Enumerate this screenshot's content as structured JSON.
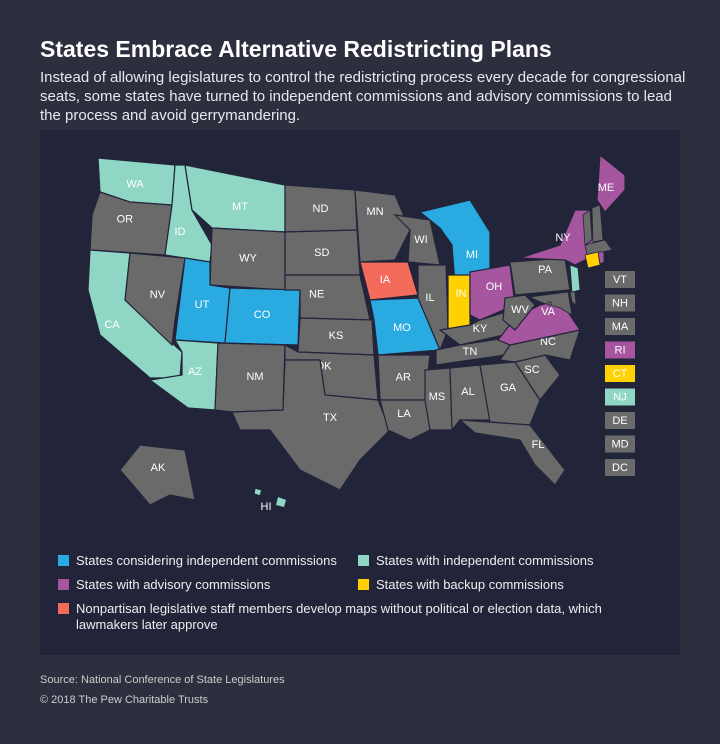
{
  "title": "States Embrace Alternative Redistricting Plans",
  "subtitle": "Instead of allowing legislatures to control the redistricting process every decade for congressional seats, some states have turned to independent commissions and advisory commissions to lead the process and avoid gerrymandering.",
  "states": [
    {
      "label": "WA",
      "color": "#8fd6c4"
    },
    {
      "label": "OR",
      "color": "#6a6a6a"
    },
    {
      "label": "CA",
      "color": "#8fd6c4"
    },
    {
      "label": "NV",
      "color": "#6a6a6a"
    },
    {
      "label": "ID",
      "color": "#8fd6c4"
    },
    {
      "label": "MT",
      "color": "#8fd6c4"
    },
    {
      "label": "WY",
      "color": "#6a6a6a"
    },
    {
      "label": "UT",
      "color": "#29abe2"
    },
    {
      "label": "CO",
      "color": "#29abe2"
    },
    {
      "label": "AZ",
      "color": "#8fd6c4"
    },
    {
      "label": "NM",
      "color": "#6a6a6a"
    },
    {
      "label": "ND",
      "color": "#6a6a6a"
    },
    {
      "label": "SD",
      "color": "#6a6a6a"
    },
    {
      "label": "NE",
      "color": "#6a6a6a"
    },
    {
      "label": "KS",
      "color": "#6a6a6a"
    },
    {
      "label": "OK",
      "color": "#6a6a6a"
    },
    {
      "label": "TX",
      "color": "#6a6a6a"
    },
    {
      "label": "MN",
      "color": "#6a6a6a"
    },
    {
      "label": "IA",
      "color": "#f26b5b"
    },
    {
      "label": "MO",
      "color": "#29abe2"
    },
    {
      "label": "AR",
      "color": "#6a6a6a"
    },
    {
      "label": "LA",
      "color": "#6a6a6a"
    },
    {
      "label": "WI",
      "color": "#6a6a6a"
    },
    {
      "label": "IL",
      "color": "#6a6a6a"
    },
    {
      "label": "MI",
      "color": "#29abe2"
    },
    {
      "label": "IN",
      "color": "#ffd100"
    },
    {
      "label": "OH",
      "color": "#a5569f"
    },
    {
      "label": "KY",
      "color": "#6a6a6a"
    },
    {
      "label": "TN",
      "color": "#6a6a6a"
    },
    {
      "label": "MS",
      "color": "#6a6a6a"
    },
    {
      "label": "AL",
      "color": "#6a6a6a"
    },
    {
      "label": "GA",
      "color": "#6a6a6a"
    },
    {
      "label": "FL",
      "color": "#6a6a6a"
    },
    {
      "label": "SC",
      "color": "#6a6a6a"
    },
    {
      "label": "NC",
      "color": "#6a6a6a"
    },
    {
      "label": "VA",
      "color": "#a5569f"
    },
    {
      "label": "WV",
      "color": "#6a6a6a"
    },
    {
      "label": "PA",
      "color": "#6a6a6a"
    },
    {
      "label": "NY",
      "color": "#a5569f"
    },
    {
      "label": "ME",
      "color": "#a5569f"
    },
    {
      "label": "AK",
      "color": "#6a6a6a"
    },
    {
      "label": "HI",
      "color": "#8fd6c4"
    }
  ],
  "small_states": [
    {
      "label": "VT",
      "color": "#6a6a6a"
    },
    {
      "label": "NH",
      "color": "#6a6a6a"
    },
    {
      "label": "MA",
      "color": "#6a6a6a"
    },
    {
      "label": "RI",
      "color": "#a5569f"
    },
    {
      "label": "CT",
      "color": "#ffd100"
    },
    {
      "label": "NJ",
      "color": "#8fd6c4"
    },
    {
      "label": "DE",
      "color": "#6a6a6a"
    },
    {
      "label": "MD",
      "color": "#6a6a6a"
    },
    {
      "label": "DC",
      "color": "#6a6a6a"
    }
  ],
  "legend": [
    {
      "label": "States considering independent commissions",
      "color": "#29abe2"
    },
    {
      "label": "States with independent commissions",
      "color": "#8fd6c4"
    },
    {
      "label": "States with advisory commissions",
      "color": "#a5569f"
    },
    {
      "label": "States with backup commissions",
      "color": "#ffd100"
    },
    {
      "label": "Nonpartisan legislative staff members develop maps without political or election data, which lawmakers later approve",
      "color": "#f26b5b"
    }
  ],
  "source": "Source: National Conference of State Legislatures",
  "copyright": "© 2018 The Pew Charitable Trusts"
}
